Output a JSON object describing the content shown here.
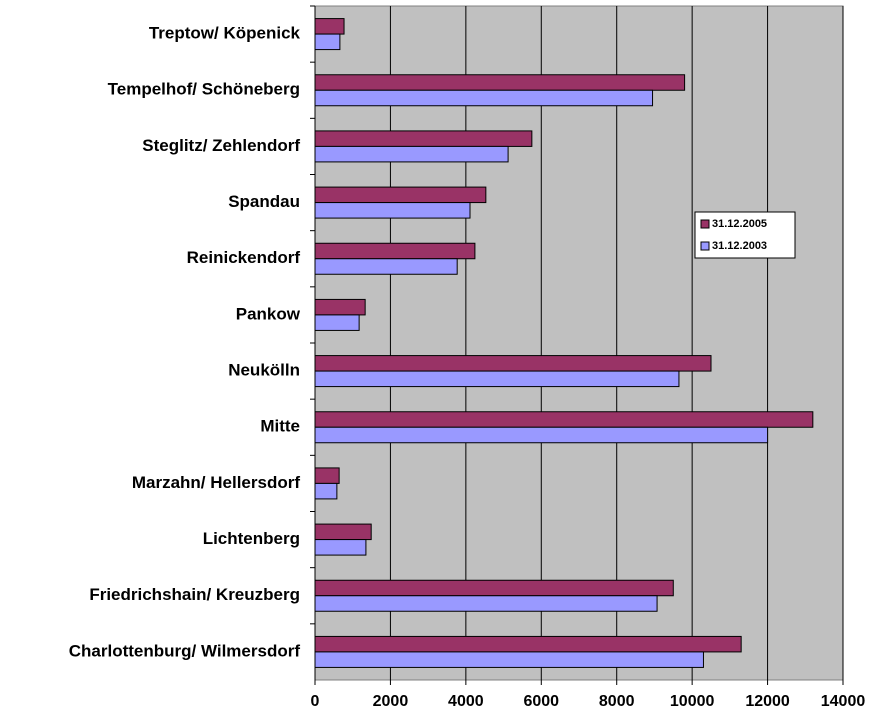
{
  "chart_data": {
    "type": "hbar",
    "categories": [
      "Treptow/ Köpenick",
      "Tempelhof/ Schöneberg",
      "Steglitz/ Zehlendorf",
      "Spandau",
      "Reinickendorf",
      "Pankow",
      "Neukölln",
      "Mitte",
      "Marzahn/ Hellersdorf",
      "Lichtenberg",
      "Friedrichshain/ Kreuzberg",
      "Charlottenburg/ Wilmersdorf"
    ],
    "series": [
      {
        "name": "31.12.2005",
        "color": "#993366",
        "values": [
          770,
          9800,
          5750,
          4530,
          4240,
          1330,
          10500,
          13200,
          640,
          1490,
          9500,
          11300
        ]
      },
      {
        "name": "31.12.2003",
        "color": "#9999ff",
        "values": [
          660,
          8950,
          5120,
          4110,
          3770,
          1170,
          9650,
          12000,
          580,
          1350,
          9070,
          10300
        ]
      }
    ],
    "xlim": [
      0,
      14000
    ],
    "xticks": [
      0,
      2000,
      4000,
      6000,
      8000,
      10000,
      12000,
      14000
    ],
    "grid": true,
    "legend": "right"
  }
}
